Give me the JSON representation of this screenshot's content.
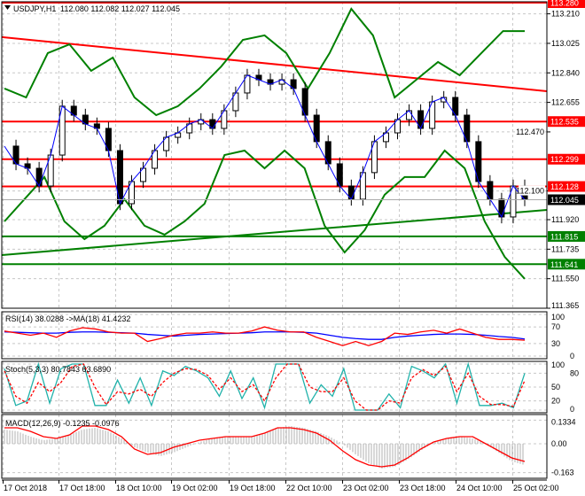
{
  "header": {
    "symbol": "USDJPY,H1",
    "ohlc": "112.080 112.082 112.027 112.045"
  },
  "colors": {
    "up_level": "#ff0000",
    "down_level": "#008000",
    "price_tag": "#000000",
    "band": "#008000",
    "rsi": "#ff0000",
    "rsi_ma": "#0000ff",
    "stoch_main": "#20b2aa",
    "stoch_signal": "#ff0000",
    "macd_hist": "#b0b0b0",
    "macd_signal": "#ff0000"
  },
  "chart_data": [
    {
      "type": "line",
      "title": "USDJPY,H1",
      "ylim": [
        111.365,
        113.28
      ],
      "price_ticks": [
        "113.210",
        "113.025",
        "112.840",
        "112.655",
        "112.470",
        "112.100",
        "111.920",
        "111.735",
        "111.550",
        "111.365"
      ],
      "price_tick_values": [
        113.21,
        113.025,
        112.84,
        112.655,
        112.47,
        112.1,
        111.92,
        111.735,
        111.55,
        111.365
      ],
      "x_ticks": [
        "17 Oct 2018",
        "17 Oct 18:00",
        "18 Oct 10:00",
        "19 Oct 02:00",
        "19 Oct 18:00",
        "22 Oct 10:00",
        "23 Oct 02:00",
        "23 Oct 18:00",
        "24 Oct 10:00",
        "25 Oct 02:00"
      ],
      "close": [
        112.381,
        112.27,
        112.242,
        112.131,
        112.325,
        112.631,
        112.575,
        112.52,
        112.492,
        112.353,
        112.02,
        112.159,
        112.242,
        112.353,
        112.436,
        112.464,
        112.52,
        112.547,
        112.492,
        112.603,
        112.714,
        112.825,
        112.797,
        112.769,
        112.797,
        112.742,
        112.575,
        112.409,
        112.27,
        112.131,
        112.048,
        112.215,
        112.409,
        112.464,
        112.547,
        112.603,
        112.492,
        112.658,
        112.686,
        112.575,
        112.409,
        112.159,
        112.048,
        111.937,
        112.131,
        112.045
      ],
      "bollinger_upper": [
        112.742,
        112.686,
        112.964,
        113.019,
        112.853,
        112.936,
        112.686,
        112.575,
        112.631,
        112.742,
        112.88,
        113.047,
        113.075,
        112.964,
        112.742,
        112.964,
        113.241,
        113.075,
        112.686,
        112.797,
        112.908,
        112.825,
        112.964,
        113.102,
        113.102
      ],
      "bollinger_lower": [
        111.909,
        112.048,
        112.187,
        111.909,
        111.798,
        111.882,
        112.048,
        111.882,
        111.826,
        111.909,
        112.02,
        112.325,
        112.353,
        112.242,
        112.353,
        112.242,
        111.882,
        111.715,
        111.854,
        112.076,
        112.187,
        112.187,
        112.353,
        112.242,
        111.909,
        111.687,
        111.549
      ],
      "levels": [
        {
          "value": "113.280",
          "color": "#ff0000"
        },
        {
          "value": "112.535",
          "color": "#ff0000"
        },
        {
          "value": "112.299",
          "color": "#ff0000"
        },
        {
          "value": "112.128",
          "color": "#ff0000"
        },
        {
          "value": "111.815",
          "color": "#008000"
        },
        {
          "value": "111.641",
          "color": "#008000"
        }
      ],
      "resistance_trendline": [
        113.064,
        112.725
      ],
      "support_trendline": [
        111.698,
        111.981
      ],
      "current_price": "112.045"
    },
    {
      "type": "line",
      "label": "RSI(14) 38.0288  ->MA(18) 41.4232",
      "ylim": [
        0,
        100
      ],
      "ticks": [
        "100",
        "70",
        "30",
        "0"
      ],
      "rsi": [
        60,
        55,
        50,
        55,
        45,
        60,
        68,
        65,
        58,
        55,
        55,
        35,
        42,
        50,
        55,
        55,
        58,
        55,
        55,
        60,
        70,
        62,
        58,
        58,
        45,
        35,
        25,
        35,
        25,
        35,
        55,
        52,
        58,
        62,
        55,
        65,
        55,
        45,
        40,
        40,
        38
      ],
      "ma": [
        58,
        57,
        56,
        55,
        55,
        57,
        58,
        58,
        57,
        56,
        55,
        52,
        50,
        48,
        50,
        52,
        53,
        54,
        55,
        56,
        58,
        58,
        58,
        57,
        55,
        50,
        45,
        42,
        40,
        40,
        45,
        48,
        50,
        52,
        53,
        53,
        52,
        50,
        47,
        45,
        41
      ]
    },
    {
      "type": "line",
      "label": "Stoch(5,3,3) 80.7843 63.6890",
      "ylim": [
        0,
        100
      ],
      "ticks": [
        "100",
        "80",
        "50",
        "20",
        "0"
      ],
      "main": [
        90,
        10,
        20,
        100,
        15,
        90,
        100,
        100,
        10,
        10,
        65,
        15,
        70,
        10,
        85,
        75,
        95,
        85,
        70,
        30,
        85,
        25,
        70,
        5,
        100,
        100,
        100,
        15,
        55,
        30,
        90,
        0,
        0,
        0,
        35,
        5,
        95,
        85,
        70,
        100,
        15,
        100,
        10,
        10,
        15,
        5,
        80
      ],
      "signal": [
        85,
        30,
        15,
        60,
        40,
        60,
        95,
        100,
        50,
        12,
        40,
        35,
        45,
        30,
        60,
        80,
        90,
        88,
        75,
        45,
        70,
        40,
        55,
        20,
        70,
        100,
        100,
        50,
        40,
        40,
        70,
        20,
        0,
        0,
        20,
        15,
        70,
        88,
        75,
        95,
        40,
        80,
        30,
        12,
        12,
        8,
        64
      ]
    },
    {
      "type": "bar",
      "label": "MACD(12,26,9) -0.1235 -0.0976",
      "ylim": [
        -0.18,
        0.15
      ],
      "ticks": [
        "0.1334",
        "0.00",
        "-0.163"
      ],
      "histogram": [
        0.08,
        0.07,
        0.04,
        0.02,
        0.03,
        0.05,
        0.08,
        0.09,
        0.07,
        0.03,
        -0.02,
        -0.05,
        -0.07,
        -0.05,
        -0.02,
        0.01,
        0.03,
        0.04,
        0.04,
        0.04,
        0.06,
        0.09,
        0.1,
        0.09,
        0.07,
        0.04,
        0.0,
        -0.06,
        -0.11,
        -0.14,
        -0.13,
        -0.09,
        -0.04,
        0.01,
        0.03,
        0.04,
        0.03,
        0.0,
        -0.05,
        -0.1,
        -0.12
      ],
      "signal": [
        0.09,
        0.09,
        0.07,
        0.04,
        0.03,
        0.05,
        0.1,
        0.1,
        0.08,
        0.04,
        -0.03,
        -0.06,
        -0.05,
        -0.02,
        0.0,
        0.02,
        0.03,
        0.04,
        0.04,
        0.04,
        0.06,
        0.09,
        0.09,
        0.08,
        0.06,
        0.02,
        -0.04,
        -0.09,
        -0.12,
        -0.13,
        -0.12,
        -0.08,
        -0.03,
        0.01,
        0.03,
        0.04,
        0.04,
        0.0,
        -0.04,
        -0.08,
        -0.1
      ]
    }
  ]
}
